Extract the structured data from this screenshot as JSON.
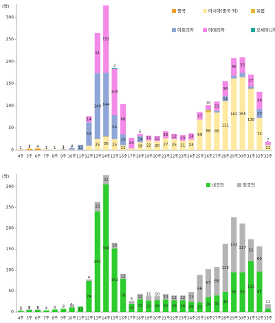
{
  "chart_data": [
    {
      "type": "stacked-bar",
      "y_label": "(명)",
      "categories": [
        "4주",
        "5주",
        "6주",
        "7주",
        "8주",
        "9주",
        "10주",
        "11주",
        "12주",
        "13주",
        "14주",
        "15주",
        "16주",
        "17주",
        "18주",
        "19주",
        "20주",
        "21주",
        "22주",
        "23주",
        "24주",
        "25주",
        "26주",
        "27주",
        "28주",
        "29주",
        "30주",
        "31주",
        "32주",
        "33주"
      ],
      "series": [
        {
          "name": "중국",
          "color": "#f0a030",
          "values": [
            1,
            3,
            4,
            1,
            0,
            1,
            0,
            0,
            0,
            0,
            0,
            0,
            0,
            0,
            0,
            0,
            0,
            0,
            0,
            0,
            0,
            0,
            0,
            0,
            0,
            0,
            0,
            0,
            0,
            0
          ]
        },
        {
          "name": "아시아(중국 외)",
          "color": "#fde9a0",
          "values": [
            0,
            1,
            0,
            0,
            1,
            0,
            1,
            0,
            10,
            25,
            30,
            25,
            11,
            4,
            18,
            22,
            20,
            27,
            25,
            21,
            24,
            69,
            86,
            85,
            111,
            162,
            165,
            138,
            73,
            11
          ]
        },
        {
          "name": "유럽",
          "color": "#e8b830",
          "values": [
            0,
            0,
            0,
            0,
            0,
            0,
            0,
            0,
            0,
            0,
            1,
            0,
            0,
            0,
            0,
            0,
            0,
            0,
            0,
            0,
            0,
            0,
            4,
            0,
            0,
            0,
            0,
            1,
            0,
            0
          ]
        },
        {
          "name": "아프리카",
          "color": "#8fa6d6",
          "values": [
            0,
            0,
            0,
            0,
            0,
            1,
            4,
            12,
            53,
            149,
            144,
            54,
            25,
            0,
            14,
            0,
            0,
            0,
            0,
            0,
            0,
            0,
            2,
            4,
            11,
            6,
            10,
            5,
            20,
            1
          ]
        },
        {
          "name": "아메리카",
          "color": "#f48ae8",
          "values": [
            0,
            0,
            0,
            0,
            0,
            0,
            0,
            0,
            14,
            91,
            152,
            105,
            68,
            24,
            5,
            11,
            12,
            16,
            12,
            13,
            14,
            17,
            10,
            21,
            34,
            40,
            35,
            27,
            39,
            7
          ]
        },
        {
          "name": "오세아니아",
          "color": "#1aa898",
          "values": [
            0,
            0,
            0,
            0,
            0,
            0,
            0,
            0,
            0,
            0,
            0,
            2,
            0,
            0,
            0,
            0,
            0,
            0,
            0,
            0,
            0,
            0,
            0,
            0,
            0,
            0,
            0,
            0,
            0,
            0
          ]
        }
      ],
      "ylim": [
        0,
        330
      ],
      "yticks": [
        0,
        50,
        100,
        150,
        200,
        250,
        300
      ],
      "legend": "top-right"
    },
    {
      "type": "stacked-bar",
      "y_label": "(명)",
      "categories": [
        "4주",
        "5주",
        "6주",
        "7주",
        "8주",
        "9주",
        "10주",
        "11주",
        "12주",
        "13주",
        "14주",
        "15주",
        "16주",
        "17주",
        "18주",
        "19주",
        "20주",
        "21주",
        "22주",
        "23주",
        "24주",
        "25주",
        "26주",
        "27주",
        "28주",
        "29주",
        "30주",
        "31주",
        "32주",
        "33주"
      ],
      "series": [
        {
          "name": "내국인",
          "color": "#2ecc2e",
          "values": [
            3,
            5,
            5,
            4,
            6,
            8,
            11,
            13,
            74,
            241,
            306,
            152,
            79,
            20,
            31,
            27,
            28,
            30,
            28,
            28,
            25,
            23,
            36,
            40,
            48,
            95,
            95,
            122,
            97,
            8
          ]
        },
        {
          "name": "외국인",
          "color": "#b4b4b4",
          "values": [
            1,
            1,
            1,
            0,
            0,
            0,
            1,
            0,
            4,
            23,
            22,
            14,
            12,
            6,
            12,
            11,
            10,
            13,
            12,
            12,
            23,
            66,
            67,
            68,
            115,
            132,
            117,
            52,
            60,
            11
          ]
        }
      ],
      "ylim": [
        0,
        330
      ],
      "yticks": [
        0,
        50,
        100,
        150,
        200,
        250,
        300
      ],
      "legend": "top-right"
    }
  ]
}
